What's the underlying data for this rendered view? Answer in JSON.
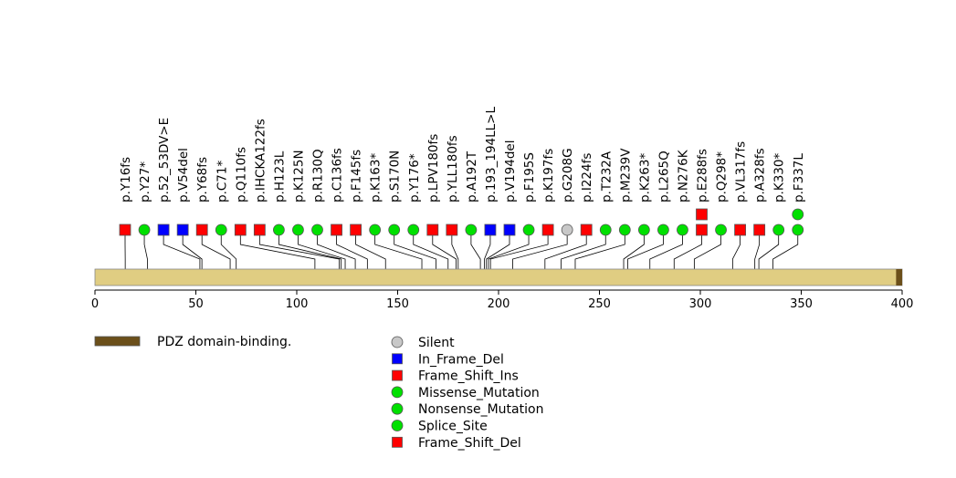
{
  "chart_data": {
    "type": "lollipop",
    "protein_length": 400,
    "x_ticks": [
      0,
      50,
      100,
      150,
      200,
      250,
      300,
      350,
      400
    ],
    "colors": {
      "protein_bar": "#e0cd82",
      "domain": "#6b4f1a",
      "missense": "#00e000",
      "frame_shift": "#ff0000",
      "in_frame": "#0000ff",
      "silent": "#c8c8c8"
    },
    "domains": [
      {
        "name": "PDZ domain-binding.",
        "start": 397,
        "end": 400
      }
    ],
    "mutations": [
      {
        "label": "p.Y16fs",
        "pos": 15,
        "shape": "square",
        "color": "#ff0000",
        "count": 1
      },
      {
        "label": "p.Y27*",
        "pos": 26,
        "shape": "circle",
        "color": "#00e000",
        "count": 1
      },
      {
        "label": "p.52_53DV>E",
        "pos": 52,
        "shape": "square",
        "color": "#0000ff",
        "count": 1
      },
      {
        "label": "p.V54del",
        "pos": 53,
        "shape": "square",
        "color": "#0000ff",
        "count": 1
      },
      {
        "label": "p.Y68fs",
        "pos": 67,
        "shape": "square",
        "color": "#ff0000",
        "count": 1
      },
      {
        "label": "p.C71*",
        "pos": 70,
        "shape": "circle",
        "color": "#00e000",
        "count": 1
      },
      {
        "label": "p.Q110fs",
        "pos": 109,
        "shape": "square",
        "color": "#ff0000",
        "count": 1
      },
      {
        "label": "p.IHCKA122fs",
        "pos": 121,
        "shape": "square",
        "color": "#ff0000",
        "count": 1
      },
      {
        "label": "p.H123L",
        "pos": 122,
        "shape": "circle",
        "color": "#00e000",
        "count": 1
      },
      {
        "label": "p.K125N",
        "pos": 124,
        "shape": "circle",
        "color": "#00e000",
        "count": 1
      },
      {
        "label": "p.R130Q",
        "pos": 129,
        "shape": "circle",
        "color": "#00e000",
        "count": 1
      },
      {
        "label": "p.C136fs",
        "pos": 135,
        "shape": "square",
        "color": "#ff0000",
        "count": 1
      },
      {
        "label": "p.F145fs",
        "pos": 144,
        "shape": "square",
        "color": "#ff0000",
        "count": 1
      },
      {
        "label": "p.K163*",
        "pos": 162,
        "shape": "circle",
        "color": "#00e000",
        "count": 1
      },
      {
        "label": "p.S170N",
        "pos": 169,
        "shape": "circle",
        "color": "#00e000",
        "count": 1
      },
      {
        "label": "p.Y176*",
        "pos": 175,
        "shape": "circle",
        "color": "#00e000",
        "count": 1
      },
      {
        "label": "p.LPV180fs",
        "pos": 179,
        "shape": "square",
        "color": "#ff0000",
        "count": 1
      },
      {
        "label": "p.YLL180fs",
        "pos": 180,
        "shape": "square",
        "color": "#ff0000",
        "count": 1
      },
      {
        "label": "p.A192T",
        "pos": 191,
        "shape": "circle",
        "color": "#00e000",
        "count": 1
      },
      {
        "label": "p.193_194LL>L",
        "pos": 193,
        "shape": "square",
        "color": "#0000ff",
        "count": 1
      },
      {
        "label": "p.V194del",
        "pos": 194,
        "shape": "square",
        "color": "#0000ff",
        "count": 1
      },
      {
        "label": "p.F195S",
        "pos": 195,
        "shape": "circle",
        "color": "#00e000",
        "count": 1
      },
      {
        "label": "p.K197fs",
        "pos": 196,
        "shape": "square",
        "color": "#ff0000",
        "count": 1
      },
      {
        "label": "p.G208G",
        "pos": 207,
        "shape": "circle",
        "color": "#c8c8c8",
        "count": 1
      },
      {
        "label": "p.I224fs",
        "pos": 223,
        "shape": "square",
        "color": "#ff0000",
        "count": 1
      },
      {
        "label": "p.T232A",
        "pos": 231,
        "shape": "circle",
        "color": "#00e000",
        "count": 1
      },
      {
        "label": "p.M239V",
        "pos": 238,
        "shape": "circle",
        "color": "#00e000",
        "count": 1
      },
      {
        "label": "p.K263*",
        "pos": 262,
        "shape": "circle",
        "color": "#00e000",
        "count": 1
      },
      {
        "label": "p.L265Q",
        "pos": 264,
        "shape": "circle",
        "color": "#00e000",
        "count": 1
      },
      {
        "label": "p.N276K",
        "pos": 275,
        "shape": "circle",
        "color": "#00e000",
        "count": 1
      },
      {
        "label": "p.E288fs",
        "pos": 287,
        "shape": "square",
        "color": "#ff0000",
        "count": 2
      },
      {
        "label": "p.Q298*",
        "pos": 297,
        "shape": "circle",
        "color": "#00e000",
        "count": 1
      },
      {
        "label": "p.VL317fs",
        "pos": 316,
        "shape": "square",
        "color": "#ff0000",
        "count": 1
      },
      {
        "label": "p.A328fs",
        "pos": 327,
        "shape": "square",
        "color": "#ff0000",
        "count": 1
      },
      {
        "label": "p.K330*",
        "pos": 329,
        "shape": "circle",
        "color": "#00e000",
        "count": 1
      },
      {
        "label": "p.F337L",
        "pos": 336,
        "shape": "circle",
        "color": "#00e000",
        "count": 2
      }
    ],
    "legend": {
      "domains": [
        {
          "label": "PDZ domain-binding.",
          "color": "#6b4f1a"
        }
      ],
      "mutation_types": [
        {
          "label": "Silent",
          "shape": "circle",
          "color": "#c8c8c8"
        },
        {
          "label": "In_Frame_Del",
          "shape": "square",
          "color": "#0000ff"
        },
        {
          "label": "Frame_Shift_Ins",
          "shape": "square",
          "color": "#ff0000"
        },
        {
          "label": "Missense_Mutation",
          "shape": "circle",
          "color": "#00e000"
        },
        {
          "label": "Nonsense_Mutation",
          "shape": "circle",
          "color": "#00e000"
        },
        {
          "label": "Splice_Site",
          "shape": "circle",
          "color": "#00e000"
        },
        {
          "label": "Frame_Shift_Del",
          "shape": "square",
          "color": "#ff0000"
        }
      ]
    }
  }
}
